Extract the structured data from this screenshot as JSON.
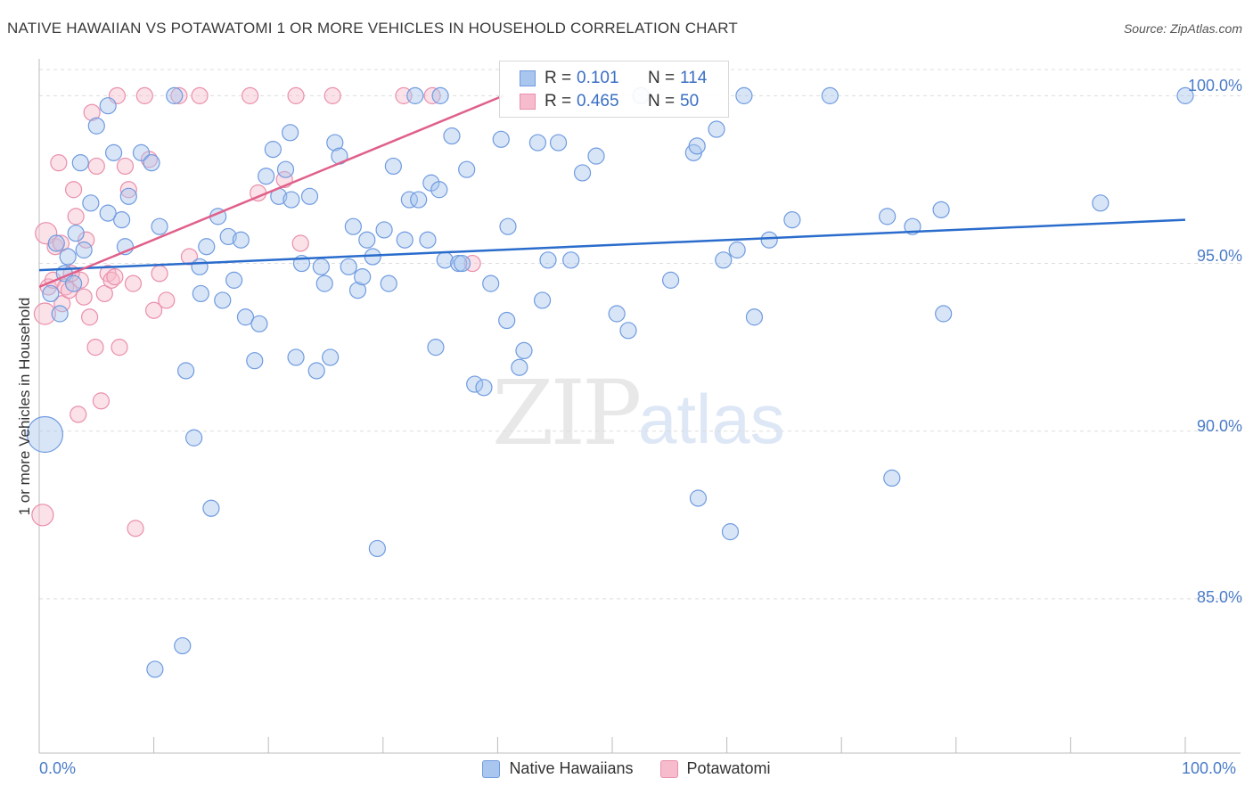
{
  "title": "NATIVE HAWAIIAN VS POTAWATOMI 1 OR MORE VEHICLES IN HOUSEHOLD CORRELATION CHART",
  "source": "Source: ZipAtlas.com",
  "watermark": {
    "zip": "ZIP",
    "atlas": "atlas"
  },
  "legend": {
    "rows": [
      {
        "r_label": "R =",
        "r_value": "0.101",
        "n_label": "N =",
        "n_value": "114"
      },
      {
        "r_label": "R =",
        "r_value": "0.465",
        "n_label": "N =",
        "n_value": "50"
      }
    ]
  },
  "bottom_legend": [
    "Native Hawaiians",
    "Potawatomi"
  ],
  "colors": {
    "blue_fill": "#a9c6ee",
    "blue_stroke": "#6f9be0",
    "blue_line": "#2a6ccc",
    "pink_fill": "#f6bccd",
    "pink_stroke": "#ea8fab",
    "pink_line": "#e0608a",
    "tick_text": "#4a7bc8"
  },
  "chart_data": {
    "type": "scatter",
    "title": "NATIVE HAWAIIAN VS POTAWATOMI 1 OR MORE VEHICLES IN HOUSEHOLD CORRELATION CHART",
    "xlabel": "",
    "ylabel": "1 or more Vehicles in Household",
    "x_tick_labels": [
      "0.0%",
      "100.0%"
    ],
    "y_tick_labels": [
      "100.0%",
      "95.0%",
      "90.0%",
      "85.0%"
    ],
    "xlim": [
      0,
      100
    ],
    "ylim": [
      80.4,
      101.1
    ],
    "grid": true,
    "series": [
      {
        "name": "Native Hawaiians",
        "trend": {
          "x": [
            0,
            100
          ],
          "y": [
            94.8,
            96.3
          ]
        },
        "points": [
          [
            0.5,
            89.9
          ],
          [
            1.0,
            94.1
          ],
          [
            1.5,
            95.6
          ],
          [
            1.8,
            93.5
          ],
          [
            2.2,
            94.7
          ],
          [
            2.5,
            95.2
          ],
          [
            3.0,
            94.4
          ],
          [
            3.2,
            95.9
          ],
          [
            3.6,
            98.0
          ],
          [
            3.9,
            95.4
          ],
          [
            4.5,
            96.8
          ],
          [
            5.0,
            99.1
          ],
          [
            6.0,
            99.7
          ],
          [
            6.5,
            98.3
          ],
          [
            7.2,
            96.3
          ],
          [
            7.5,
            95.5
          ],
          [
            7.8,
            97.0
          ],
          [
            8.9,
            98.3
          ],
          [
            9.8,
            98.0
          ],
          [
            10.5,
            96.1
          ],
          [
            11.8,
            100.0
          ],
          [
            12.8,
            91.8
          ],
          [
            13.5,
            89.8
          ],
          [
            14.1,
            94.1
          ],
          [
            14.6,
            95.5
          ],
          [
            15.0,
            87.7
          ],
          [
            15.6,
            96.4
          ],
          [
            16.0,
            93.9
          ],
          [
            16.5,
            95.8
          ],
          [
            17.0,
            94.5
          ],
          [
            17.6,
            95.7
          ],
          [
            18.0,
            93.4
          ],
          [
            18.8,
            92.1
          ],
          [
            19.2,
            93.2
          ],
          [
            19.8,
            97.6
          ],
          [
            20.4,
            98.4
          ],
          [
            20.9,
            97.0
          ],
          [
            21.5,
            97.8
          ],
          [
            21.9,
            98.9
          ],
          [
            22.4,
            92.2
          ],
          [
            22.9,
            95.0
          ],
          [
            23.6,
            97.0
          ],
          [
            24.2,
            91.8
          ],
          [
            24.6,
            94.9
          ],
          [
            24.9,
            94.4
          ],
          [
            25.4,
            92.2
          ],
          [
            25.8,
            98.6
          ],
          [
            26.2,
            98.2
          ],
          [
            27.0,
            94.9
          ],
          [
            27.4,
            96.1
          ],
          [
            27.8,
            94.2
          ],
          [
            28.2,
            94.6
          ],
          [
            28.6,
            95.7
          ],
          [
            29.1,
            95.2
          ],
          [
            30.1,
            96.0
          ],
          [
            30.5,
            94.4
          ],
          [
            30.9,
            97.9
          ],
          [
            31.9,
            95.7
          ],
          [
            32.3,
            96.9
          ],
          [
            32.8,
            100.0
          ],
          [
            33.1,
            96.9
          ],
          [
            33.9,
            95.7
          ],
          [
            34.2,
            97.4
          ],
          [
            34.6,
            92.5
          ],
          [
            34.9,
            97.2
          ],
          [
            35.4,
            95.1
          ],
          [
            36.0,
            98.8
          ],
          [
            36.6,
            95.0
          ],
          [
            36.9,
            95.0
          ],
          [
            37.3,
            97.8
          ],
          [
            38.0,
            91.4
          ],
          [
            38.8,
            91.3
          ],
          [
            39.4,
            94.4
          ],
          [
            40.3,
            98.7
          ],
          [
            40.8,
            93.3
          ],
          [
            40.9,
            96.1
          ],
          [
            41.9,
            91.9
          ],
          [
            42.3,
            92.4
          ],
          [
            43.5,
            98.6
          ],
          [
            43.9,
            93.9
          ],
          [
            44.4,
            95.1
          ],
          [
            45.3,
            98.6
          ],
          [
            46.4,
            95.1
          ],
          [
            47.4,
            97.7
          ],
          [
            48.6,
            98.2
          ],
          [
            50.4,
            93.5
          ],
          [
            51.4,
            93.0
          ],
          [
            52.5,
            100.0
          ],
          [
            55.1,
            94.5
          ],
          [
            57.1,
            98.3
          ],
          [
            57.4,
            98.5
          ],
          [
            57.5,
            88.0
          ],
          [
            59.1,
            99.0
          ],
          [
            59.7,
            95.1
          ],
          [
            60.3,
            87.0
          ],
          [
            60.9,
            95.4
          ],
          [
            61.5,
            100.0
          ],
          [
            62.4,
            93.4
          ],
          [
            63.7,
            95.7
          ],
          [
            65.7,
            96.3
          ],
          [
            69.0,
            100.0
          ],
          [
            74.0,
            96.4
          ],
          [
            74.4,
            88.6
          ],
          [
            76.2,
            96.1
          ],
          [
            78.7,
            96.6
          ],
          [
            78.9,
            93.5
          ],
          [
            92.6,
            96.8
          ],
          [
            100.0,
            100.0
          ],
          [
            10.1,
            82.9
          ],
          [
            12.5,
            83.6
          ],
          [
            29.5,
            86.5
          ],
          [
            35.0,
            100.0
          ],
          [
            6.0,
            96.5
          ],
          [
            22.0,
            96.9
          ],
          [
            14.0,
            94.9
          ]
        ]
      },
      {
        "name": "Potawatomi",
        "trend": {
          "x": [
            0,
            40.5
          ],
          "y": [
            94.3,
            100.0
          ]
        },
        "points": [
          [
            0.3,
            87.5
          ],
          [
            0.5,
            93.5
          ],
          [
            0.8,
            94.3
          ],
          [
            1.2,
            94.5
          ],
          [
            1.4,
            95.5
          ],
          [
            1.7,
            98.0
          ],
          [
            2.0,
            93.8
          ],
          [
            2.3,
            94.3
          ],
          [
            2.6,
            94.2
          ],
          [
            3.0,
            97.2
          ],
          [
            3.2,
            96.4
          ],
          [
            3.4,
            90.5
          ],
          [
            3.6,
            94.5
          ],
          [
            3.9,
            94.0
          ],
          [
            4.1,
            95.7
          ],
          [
            4.4,
            93.4
          ],
          [
            4.6,
            99.5
          ],
          [
            4.9,
            92.5
          ],
          [
            5.0,
            97.9
          ],
          [
            5.4,
            90.9
          ],
          [
            5.7,
            94.1
          ],
          [
            6.0,
            94.7
          ],
          [
            6.3,
            94.5
          ],
          [
            6.8,
            100.0
          ],
          [
            7.0,
            92.5
          ],
          [
            7.5,
            97.9
          ],
          [
            7.8,
            97.2
          ],
          [
            8.2,
            94.4
          ],
          [
            8.4,
            87.1
          ],
          [
            9.2,
            100.0
          ],
          [
            9.6,
            98.1
          ],
          [
            10.0,
            93.6
          ],
          [
            10.5,
            94.7
          ],
          [
            11.1,
            93.9
          ],
          [
            12.2,
            100.0
          ],
          [
            13.1,
            95.2
          ],
          [
            18.4,
            100.0
          ],
          [
            19.1,
            97.1
          ],
          [
            21.4,
            97.5
          ],
          [
            22.4,
            100.0
          ],
          [
            22.8,
            95.6
          ],
          [
            25.6,
            100.0
          ],
          [
            31.8,
            100.0
          ],
          [
            34.3,
            100.0
          ],
          [
            37.8,
            95.0
          ],
          [
            0.6,
            95.9
          ],
          [
            2.8,
            94.7
          ],
          [
            6.6,
            94.6
          ],
          [
            1.9,
            95.6
          ],
          [
            14.0,
            100.0
          ]
        ]
      }
    ]
  }
}
